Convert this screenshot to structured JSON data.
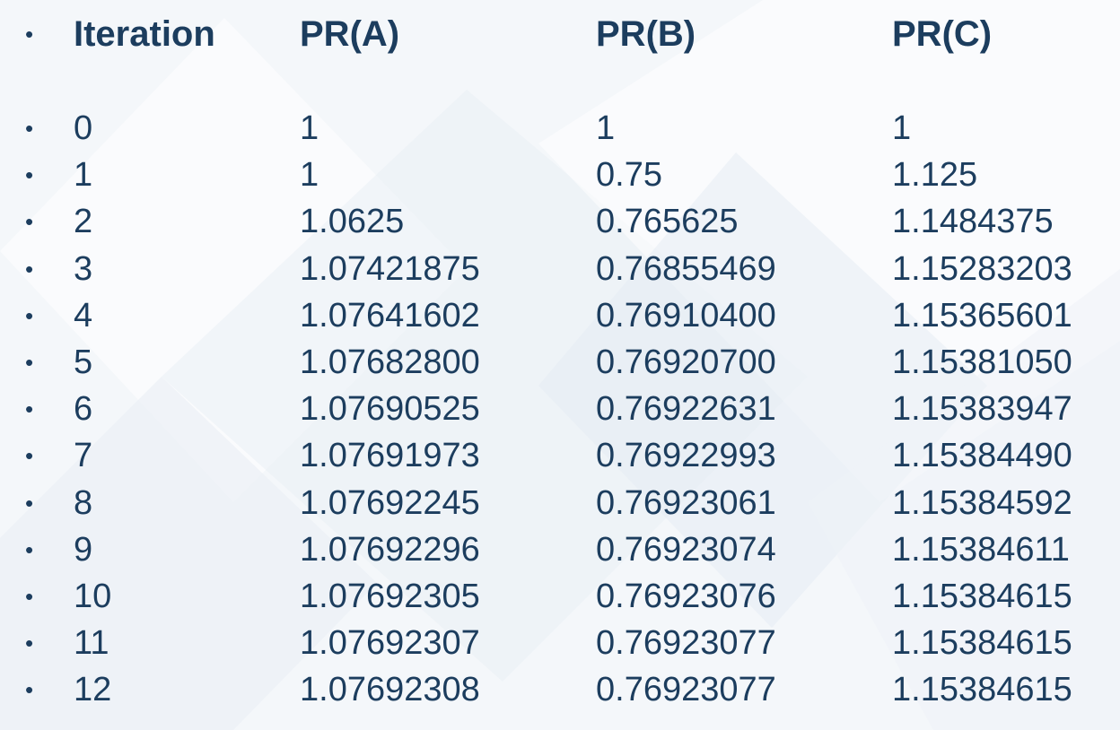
{
  "table": {
    "headers": [
      "Iteration",
      "PR(A)",
      "PR(B)",
      "PR(C)"
    ],
    "rows": [
      [
        "0",
        "1",
        "1",
        "1"
      ],
      [
        "1",
        "1",
        "0.75",
        "1.125"
      ],
      [
        "2",
        "1.0625",
        "0.765625",
        "1.1484375"
      ],
      [
        "3",
        "1.07421875",
        "0.76855469",
        "1.15283203"
      ],
      [
        "4",
        "1.07641602",
        "0.76910400",
        "1.15365601"
      ],
      [
        "5",
        "1.07682800",
        "0.76920700",
        "1.15381050"
      ],
      [
        "6",
        "1.07690525",
        "0.76922631",
        "1.15383947"
      ],
      [
        "7",
        "1.07691973",
        "0.76922993",
        "1.15384490"
      ],
      [
        "8",
        "1.07692245",
        "0.76923061",
        "1.15384592"
      ],
      [
        "9",
        "1.07692296",
        "0.76923074",
        "1.15384611"
      ],
      [
        "10",
        "1.07692305",
        "0.76923076",
        "1.15384615"
      ],
      [
        "11",
        "1.07692307",
        "0.76923077",
        "1.15384615"
      ],
      [
        "12",
        "1.07692308",
        "0.76923077",
        "1.15384615"
      ]
    ]
  },
  "bullet": "•",
  "colors": {
    "text": "#1c3d5e",
    "background": "#f4f7fa"
  }
}
